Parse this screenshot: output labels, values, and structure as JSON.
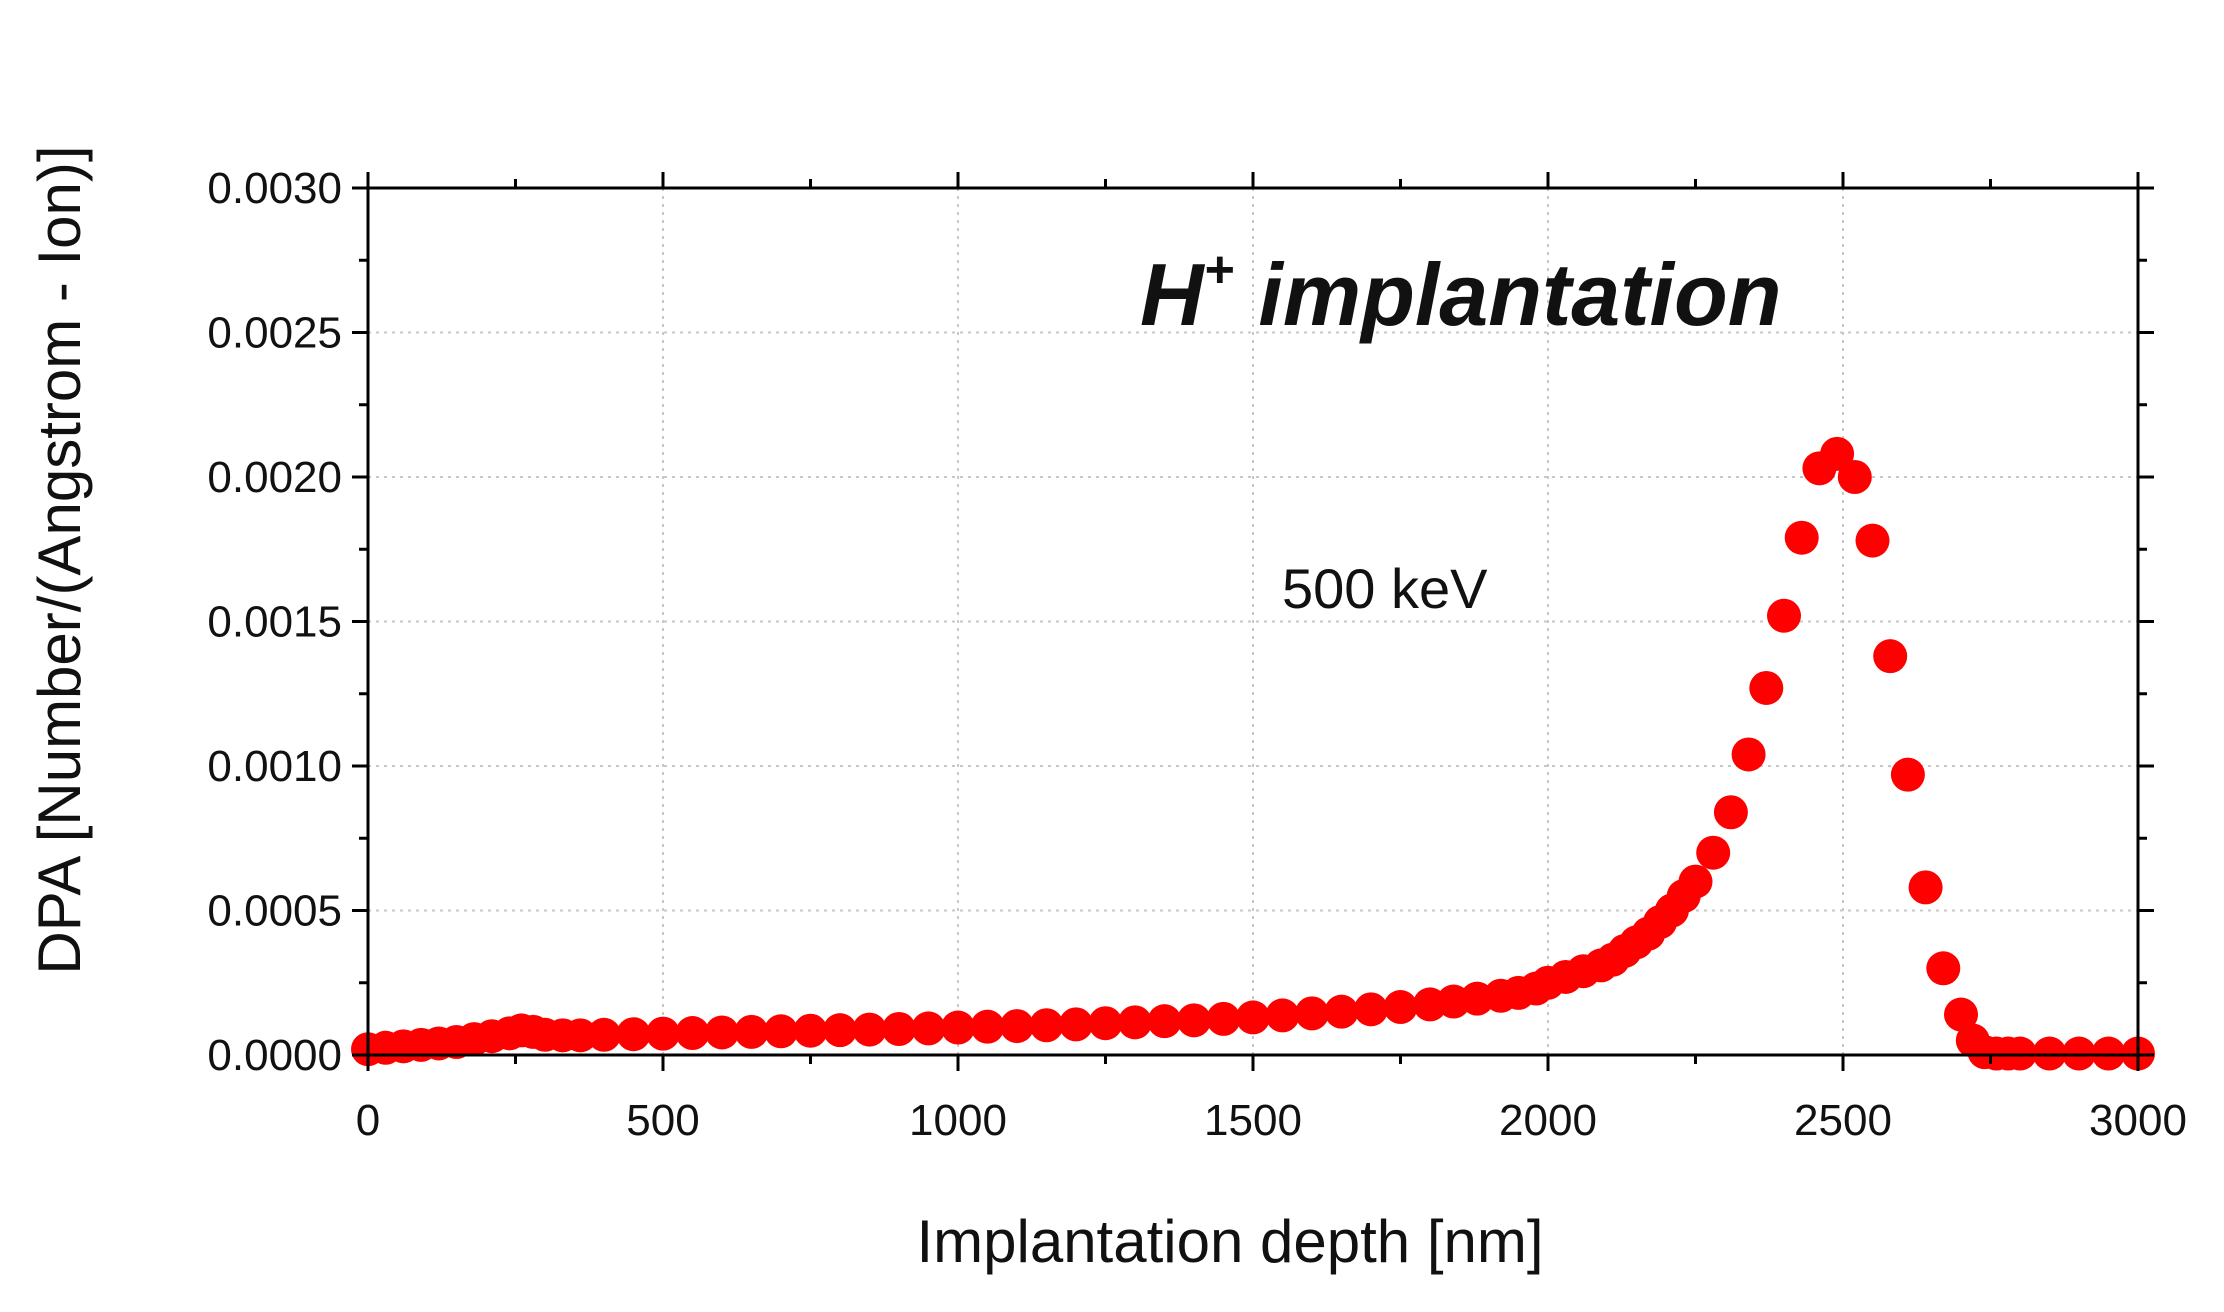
{
  "chart_data": {
    "type": "scatter",
    "title": "",
    "xlabel": "Implantation depth [nm]",
    "ylabel": "DPA [Number/(Angstrom - Ion)]",
    "xlim": [
      0,
      3000
    ],
    "ylim": [
      0,
      0.003
    ],
    "xticks": [
      0,
      500,
      1000,
      1500,
      2000,
      2500,
      3000
    ],
    "xtick_labels": [
      "0",
      "500",
      "1000",
      "1500",
      "2000",
      "2500",
      "3000"
    ],
    "yticks": [
      0,
      0.0005,
      0.001,
      0.0015,
      0.002,
      0.0025,
      0.003
    ],
    "ytick_labels": [
      "0.0000",
      "0.0005",
      "0.0010",
      "0.0015",
      "0.0020",
      "0.0025",
      "0.0030"
    ],
    "grid": true,
    "marker_color": "#ff0000",
    "annotations": {
      "title_main": "H",
      "title_sup": "+",
      "title_rest": " implantation",
      "energy": "500 keV"
    },
    "series": [
      {
        "name": "500 keV",
        "x": [
          0,
          30,
          60,
          90,
          120,
          150,
          180,
          210,
          240,
          260,
          280,
          300,
          330,
          360,
          400,
          450,
          500,
          550,
          600,
          650,
          700,
          750,
          800,
          850,
          900,
          950,
          1000,
          1050,
          1100,
          1150,
          1200,
          1250,
          1300,
          1350,
          1400,
          1450,
          1500,
          1550,
          1600,
          1650,
          1700,
          1750,
          1800,
          1840,
          1880,
          1920,
          1950,
          1980,
          2000,
          2030,
          2060,
          2090,
          2110,
          2130,
          2150,
          2170,
          2190,
          2210,
          2230,
          2250,
          2280,
          2310,
          2340,
          2370,
          2400,
          2430,
          2460,
          2490,
          2520,
          2550,
          2580,
          2610,
          2640,
          2670,
          2700,
          2720,
          2740,
          2760,
          2780,
          2800,
          2850,
          2900,
          2950,
          3000
        ],
        "y": [
          2e-05,
          2.5e-05,
          3e-05,
          3.5e-05,
          4e-05,
          4.5e-05,
          5.5e-05,
          6.5e-05,
          7.5e-05,
          8.5e-05,
          8e-05,
          7e-05,
          6.8e-05,
          6.8e-05,
          7e-05,
          7.2e-05,
          7.4e-05,
          7.6e-05,
          7.8e-05,
          8e-05,
          8.2e-05,
          8.4e-05,
          8.6e-05,
          8.8e-05,
          9e-05,
          9.2e-05,
          9.5e-05,
          9.8e-05,
          0.0001,
          0.000103,
          0.000106,
          0.00011,
          0.000113,
          0.000117,
          0.00012,
          0.000125,
          0.00013,
          0.000137,
          0.000144,
          0.00015,
          0.000158,
          0.000166,
          0.000175,
          0.000185,
          0.000195,
          0.000205,
          0.000215,
          0.00023,
          0.00025,
          0.00027,
          0.00029,
          0.00031,
          0.00033,
          0.00036,
          0.00039,
          0.00042,
          0.00046,
          0.0005,
          0.00055,
          0.0006,
          0.0007,
          0.00084,
          0.00104,
          0.00127,
          0.00152,
          0.00179,
          0.00203,
          0.00208,
          0.002,
          0.00178,
          0.00138,
          0.00097,
          0.00058,
          0.0003,
          0.00014,
          5e-05,
          1e-05,
          5e-06,
          5e-06,
          5e-06,
          5e-06,
          5e-06,
          5e-06,
          5e-06
        ]
      }
    ]
  }
}
